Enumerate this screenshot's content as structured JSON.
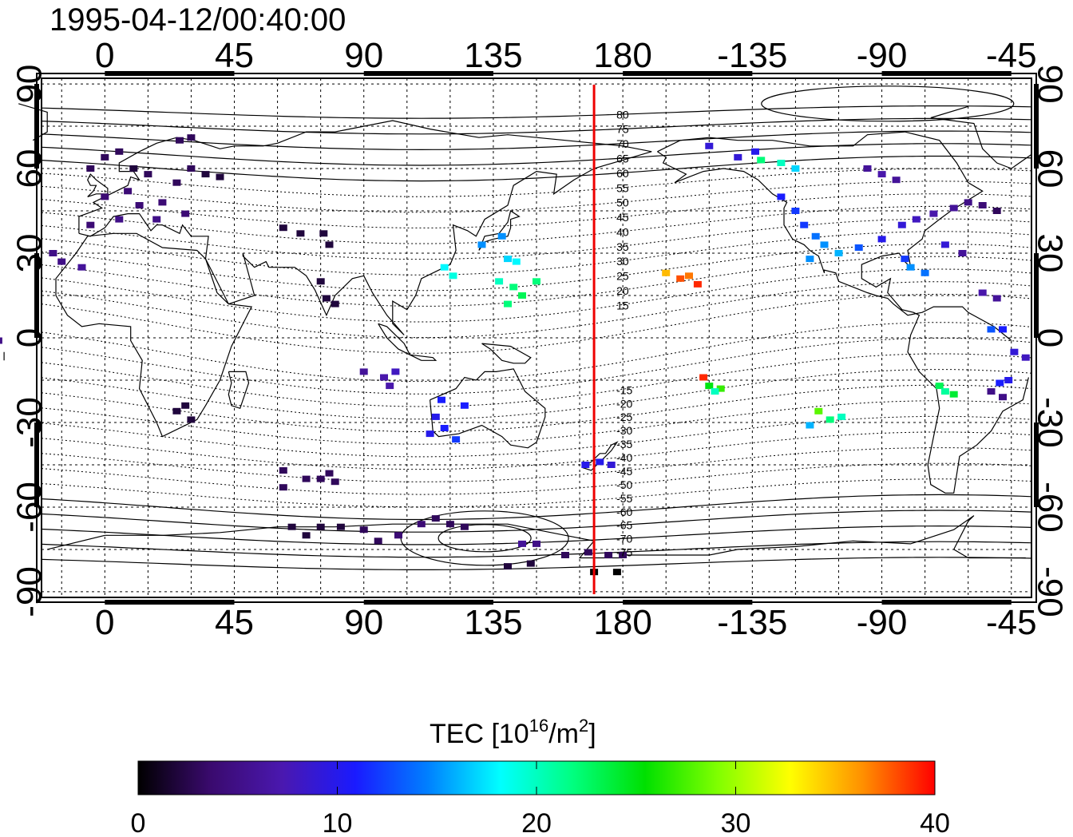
{
  "title": "1995-04-12/00:40:00",
  "colorbar": {
    "label_main": "TEC  [10",
    "label_sup": "16",
    "label_mid": "/m",
    "label_sup2": "2",
    "label_end": "]",
    "min": 0,
    "max": 40,
    "ticks": [
      "0",
      "10",
      "20",
      "30",
      "40"
    ],
    "colors": [
      "#000000",
      "#3a0a6e",
      "#4a18b0",
      "#1a1aff",
      "#0080ff",
      "#00ffff",
      "#00ff80",
      "#00e000",
      "#80ff00",
      "#ffff00",
      "#ff9000",
      "#ff0000"
    ]
  },
  "map": {
    "lon_labels_top": [
      "0",
      "45",
      "90",
      "135",
      "180",
      "-135",
      "-90",
      "-45"
    ],
    "lon_labels_bottom": [
      "0",
      "45",
      "90",
      "135",
      "180",
      "-135",
      "-90",
      "-45"
    ],
    "lat_labels": [
      "90",
      "60",
      "30",
      "0",
      "-30",
      "-60",
      "-90"
    ],
    "marker_longitude": 170,
    "marker_color": "#ee0000",
    "contour_labels_north": [
      "80",
      "75",
      "70",
      "65",
      "60",
      "55",
      "50",
      "45",
      "40",
      "35",
      "30",
      "25",
      "20",
      "15"
    ],
    "contour_labels_south": [
      "-15",
      "-20",
      "-25",
      "-30",
      "-35",
      "-40",
      "-45",
      "-50",
      "-55",
      "-60",
      "-65",
      "-70",
      "-75"
    ]
  },
  "chart_data": {
    "type": "scatter",
    "title": "1995-04-12/00:40:00",
    "xlabel": "",
    "ylabel": "",
    "xlim": [
      -22,
      322
    ],
    "ylim": [
      -92,
      92
    ],
    "x_ticks": [
      0,
      45,
      90,
      135,
      180,
      225,
      270,
      315
    ],
    "y_ticks": [
      90,
      60,
      30,
      0,
      -30,
      -60,
      -90
    ],
    "colorbar_label": "TEC  [10^16/m^2]",
    "colorbar_range": [
      0,
      40
    ],
    "marker_line_longitude": 170,
    "points": [
      {
        "lon": -5,
        "lat": 60,
        "tec": 3
      },
      {
        "lon": 0,
        "lat": 64,
        "tec": 3
      },
      {
        "lon": 5,
        "lat": 66,
        "tec": 3
      },
      {
        "lon": 10,
        "lat": 60,
        "tec": 2
      },
      {
        "lon": 15,
        "lat": 58,
        "tec": 3
      },
      {
        "lon": 8,
        "lat": 52,
        "tec": 4
      },
      {
        "lon": 0,
        "lat": 50,
        "tec": 4
      },
      {
        "lon": 12,
        "lat": 47,
        "tec": 4
      },
      {
        "lon": 20,
        "lat": 48,
        "tec": 4
      },
      {
        "lon": 25,
        "lat": 55,
        "tec": 3
      },
      {
        "lon": -5,
        "lat": 40,
        "tec": 4
      },
      {
        "lon": 5,
        "lat": 42,
        "tec": 5
      },
      {
        "lon": 18,
        "lat": 42,
        "tec": 5
      },
      {
        "lon": 28,
        "lat": 44,
        "tec": 4
      },
      {
        "lon": 30,
        "lat": 60,
        "tec": 3
      },
      {
        "lon": 35,
        "lat": 58,
        "tec": 2
      },
      {
        "lon": 40,
        "lat": 57,
        "tec": 2
      },
      {
        "lon": 26,
        "lat": 70,
        "tec": 3
      },
      {
        "lon": 30,
        "lat": 71,
        "tec": 3
      },
      {
        "lon": -18,
        "lat": 30,
        "tec": 5
      },
      {
        "lon": -15,
        "lat": 27,
        "tec": 5
      },
      {
        "lon": -8,
        "lat": 25,
        "tec": 6
      },
      {
        "lon": 62,
        "lat": 39,
        "tec": 2
      },
      {
        "lon": 68,
        "lat": 37,
        "tec": 2
      },
      {
        "lon": 76,
        "lat": 37,
        "tec": 2
      },
      {
        "lon": 78,
        "lat": 33,
        "tec": 2
      },
      {
        "lon": 75,
        "lat": 20,
        "tec": 2
      },
      {
        "lon": 77,
        "lat": 14,
        "tec": 2
      },
      {
        "lon": 80,
        "lat": 12,
        "tec": 2
      },
      {
        "lon": 90,
        "lat": -12,
        "tec": 6
      },
      {
        "lon": 97,
        "lat": -14,
        "tec": 7
      },
      {
        "lon": 101,
        "lat": -12,
        "tec": 8
      },
      {
        "lon": 99,
        "lat": -17,
        "tec": 7
      },
      {
        "lon": 117,
        "lat": -22,
        "tec": 11
      },
      {
        "lon": 115,
        "lat": -28,
        "tec": 10
      },
      {
        "lon": 118,
        "lat": -32,
        "tec": 11
      },
      {
        "lon": 113,
        "lat": -34,
        "tec": 10
      },
      {
        "lon": 122,
        "lat": -36,
        "tec": 12
      },
      {
        "lon": 125,
        "lat": -24,
        "tec": 11
      },
      {
        "lon": 118,
        "lat": 25,
        "tec": 18
      },
      {
        "lon": 121,
        "lat": 22,
        "tec": 19
      },
      {
        "lon": 131,
        "lat": 33,
        "tec": 15
      },
      {
        "lon": 138,
        "lat": 36,
        "tec": 15
      },
      {
        "lon": 140,
        "lat": 28,
        "tec": 17
      },
      {
        "lon": 143,
        "lat": 27,
        "tec": 18
      },
      {
        "lon": 137,
        "lat": 20,
        "tec": 20
      },
      {
        "lon": 142,
        "lat": 18,
        "tec": 22
      },
      {
        "lon": 145,
        "lat": 15,
        "tec": 23
      },
      {
        "lon": 150,
        "lat": 20,
        "tec": 22
      },
      {
        "lon": 140,
        "lat": 12,
        "tec": 22
      },
      {
        "lon": 167,
        "lat": -45,
        "tec": 10
      },
      {
        "lon": 172,
        "lat": -44,
        "tec": 10
      },
      {
        "lon": 176,
        "lat": -45,
        "tec": 9
      },
      {
        "lon": 195,
        "lat": 23,
        "tec": 35
      },
      {
        "lon": 200,
        "lat": 21,
        "tec": 38
      },
      {
        "lon": 203,
        "lat": 22,
        "tec": 37
      },
      {
        "lon": 206,
        "lat": 19,
        "tec": 39
      },
      {
        "lon": 208,
        "lat": -14,
        "tec": 39
      },
      {
        "lon": 210,
        "lat": -17,
        "tec": 25
      },
      {
        "lon": 214,
        "lat": -18,
        "tec": 27
      },
      {
        "lon": 212,
        "lat": -19,
        "tec": 20
      },
      {
        "lon": 248,
        "lat": -26,
        "tec": 28
      },
      {
        "lon": 252,
        "lat": -29,
        "tec": 22
      },
      {
        "lon": 256,
        "lat": -28,
        "tec": 20
      },
      {
        "lon": 245,
        "lat": -31,
        "tec": 16
      },
      {
        "lon": 228,
        "lat": 63,
        "tec": 22
      },
      {
        "lon": 235,
        "lat": 62,
        "tec": 20
      },
      {
        "lon": 240,
        "lat": 60,
        "tec": 17
      },
      {
        "lon": 210,
        "lat": 68,
        "tec": 9
      },
      {
        "lon": 220,
        "lat": 64,
        "tec": 9
      },
      {
        "lon": 226,
        "lat": 66,
        "tec": 10
      },
      {
        "lon": 235,
        "lat": 50,
        "tec": 11
      },
      {
        "lon": 240,
        "lat": 45,
        "tec": 12
      },
      {
        "lon": 243,
        "lat": 40,
        "tec": 12
      },
      {
        "lon": 247,
        "lat": 36,
        "tec": 14
      },
      {
        "lon": 250,
        "lat": 33,
        "tec": 15
      },
      {
        "lon": 255,
        "lat": 30,
        "tec": 16
      },
      {
        "lon": 245,
        "lat": 28,
        "tec": 15
      },
      {
        "lon": 262,
        "lat": 32,
        "tec": 13
      },
      {
        "lon": 270,
        "lat": 35,
        "tec": 10
      },
      {
        "lon": 277,
        "lat": 40,
        "tec": 9
      },
      {
        "lon": 282,
        "lat": 42,
        "tec": 8
      },
      {
        "lon": 288,
        "lat": 44,
        "tec": 7
      },
      {
        "lon": 295,
        "lat": 46,
        "tec": 6
      },
      {
        "lon": 300,
        "lat": 48,
        "tec": 5
      },
      {
        "lon": 305,
        "lat": 47,
        "tec": 4
      },
      {
        "lon": 310,
        "lat": 45,
        "tec": 3
      },
      {
        "lon": 265,
        "lat": 60,
        "tec": 6
      },
      {
        "lon": 270,
        "lat": 58,
        "tec": 7
      },
      {
        "lon": 275,
        "lat": 56,
        "tec": 6
      },
      {
        "lon": 280,
        "lat": 25,
        "tec": 15
      },
      {
        "lon": 285,
        "lat": 23,
        "tec": 14
      },
      {
        "lon": 278,
        "lat": 28,
        "tec": 12
      },
      {
        "lon": 292,
        "lat": 33,
        "tec": 9
      },
      {
        "lon": 298,
        "lat": 30,
        "tec": 6
      },
      {
        "lon": 305,
        "lat": 16,
        "tec": 7
      },
      {
        "lon": 310,
        "lat": 14,
        "tec": 6
      },
      {
        "lon": 308,
        "lat": 3,
        "tec": 13
      },
      {
        "lon": 312,
        "lat": 3,
        "tec": 11
      },
      {
        "lon": 316,
        "lat": -5,
        "tec": 9
      },
      {
        "lon": 320,
        "lat": -7,
        "tec": 8
      },
      {
        "lon": 323,
        "lat": -1,
        "tec": 5
      },
      {
        "lon": 311,
        "lat": -16,
        "tec": 11
      },
      {
        "lon": 314,
        "lat": -15,
        "tec": 10
      },
      {
        "lon": 308,
        "lat": -19,
        "tec": 5
      },
      {
        "lon": 312,
        "lat": -21,
        "tec": 5
      },
      {
        "lon": 290,
        "lat": -17,
        "tec": 23
      },
      {
        "lon": 292,
        "lat": -19,
        "tec": 21
      },
      {
        "lon": 295,
        "lat": -20,
        "tec": 24
      },
      {
        "lon": 25,
        "lat": -26,
        "tec": 2
      },
      {
        "lon": 28,
        "lat": -24,
        "tec": 2
      },
      {
        "lon": 30,
        "lat": -29,
        "tec": 2
      },
      {
        "lon": 62,
        "lat": -47,
        "tec": 3
      },
      {
        "lon": 70,
        "lat": -50,
        "tec": 3
      },
      {
        "lon": 75,
        "lat": -50,
        "tec": 3
      },
      {
        "lon": 78,
        "lat": -48,
        "tec": 3
      },
      {
        "lon": 80,
        "lat": -51,
        "tec": 3
      },
      {
        "lon": 62,
        "lat": -53,
        "tec": 3
      },
      {
        "lon": 65,
        "lat": -67,
        "tec": 2
      },
      {
        "lon": 70,
        "lat": -70,
        "tec": 2
      },
      {
        "lon": 75,
        "lat": -67,
        "tec": 2
      },
      {
        "lon": 82,
        "lat": -67,
        "tec": 2
      },
      {
        "lon": 90,
        "lat": -68,
        "tec": 3
      },
      {
        "lon": 95,
        "lat": -72,
        "tec": 3
      },
      {
        "lon": 102,
        "lat": -70,
        "tec": 4
      },
      {
        "lon": 110,
        "lat": -66,
        "tec": 4
      },
      {
        "lon": 115,
        "lat": -64,
        "tec": 3
      },
      {
        "lon": 120,
        "lat": -66,
        "tec": 3
      },
      {
        "lon": 125,
        "lat": -67,
        "tec": 3
      },
      {
        "lon": 145,
        "lat": -73,
        "tec": 6
      },
      {
        "lon": 150,
        "lat": -73,
        "tec": 5
      },
      {
        "lon": 140,
        "lat": -81,
        "tec": 2
      },
      {
        "lon": 148,
        "lat": -80,
        "tec": 2
      },
      {
        "lon": 160,
        "lat": -77,
        "tec": 3
      },
      {
        "lon": 168,
        "lat": -76,
        "tec": 3
      },
      {
        "lon": 175,
        "lat": -77,
        "tec": 3
      },
      {
        "lon": 180,
        "lat": -77,
        "tec": 3
      },
      {
        "lon": 170,
        "lat": -83,
        "tec": 0
      },
      {
        "lon": 178,
        "lat": -83,
        "tec": 0
      }
    ]
  }
}
